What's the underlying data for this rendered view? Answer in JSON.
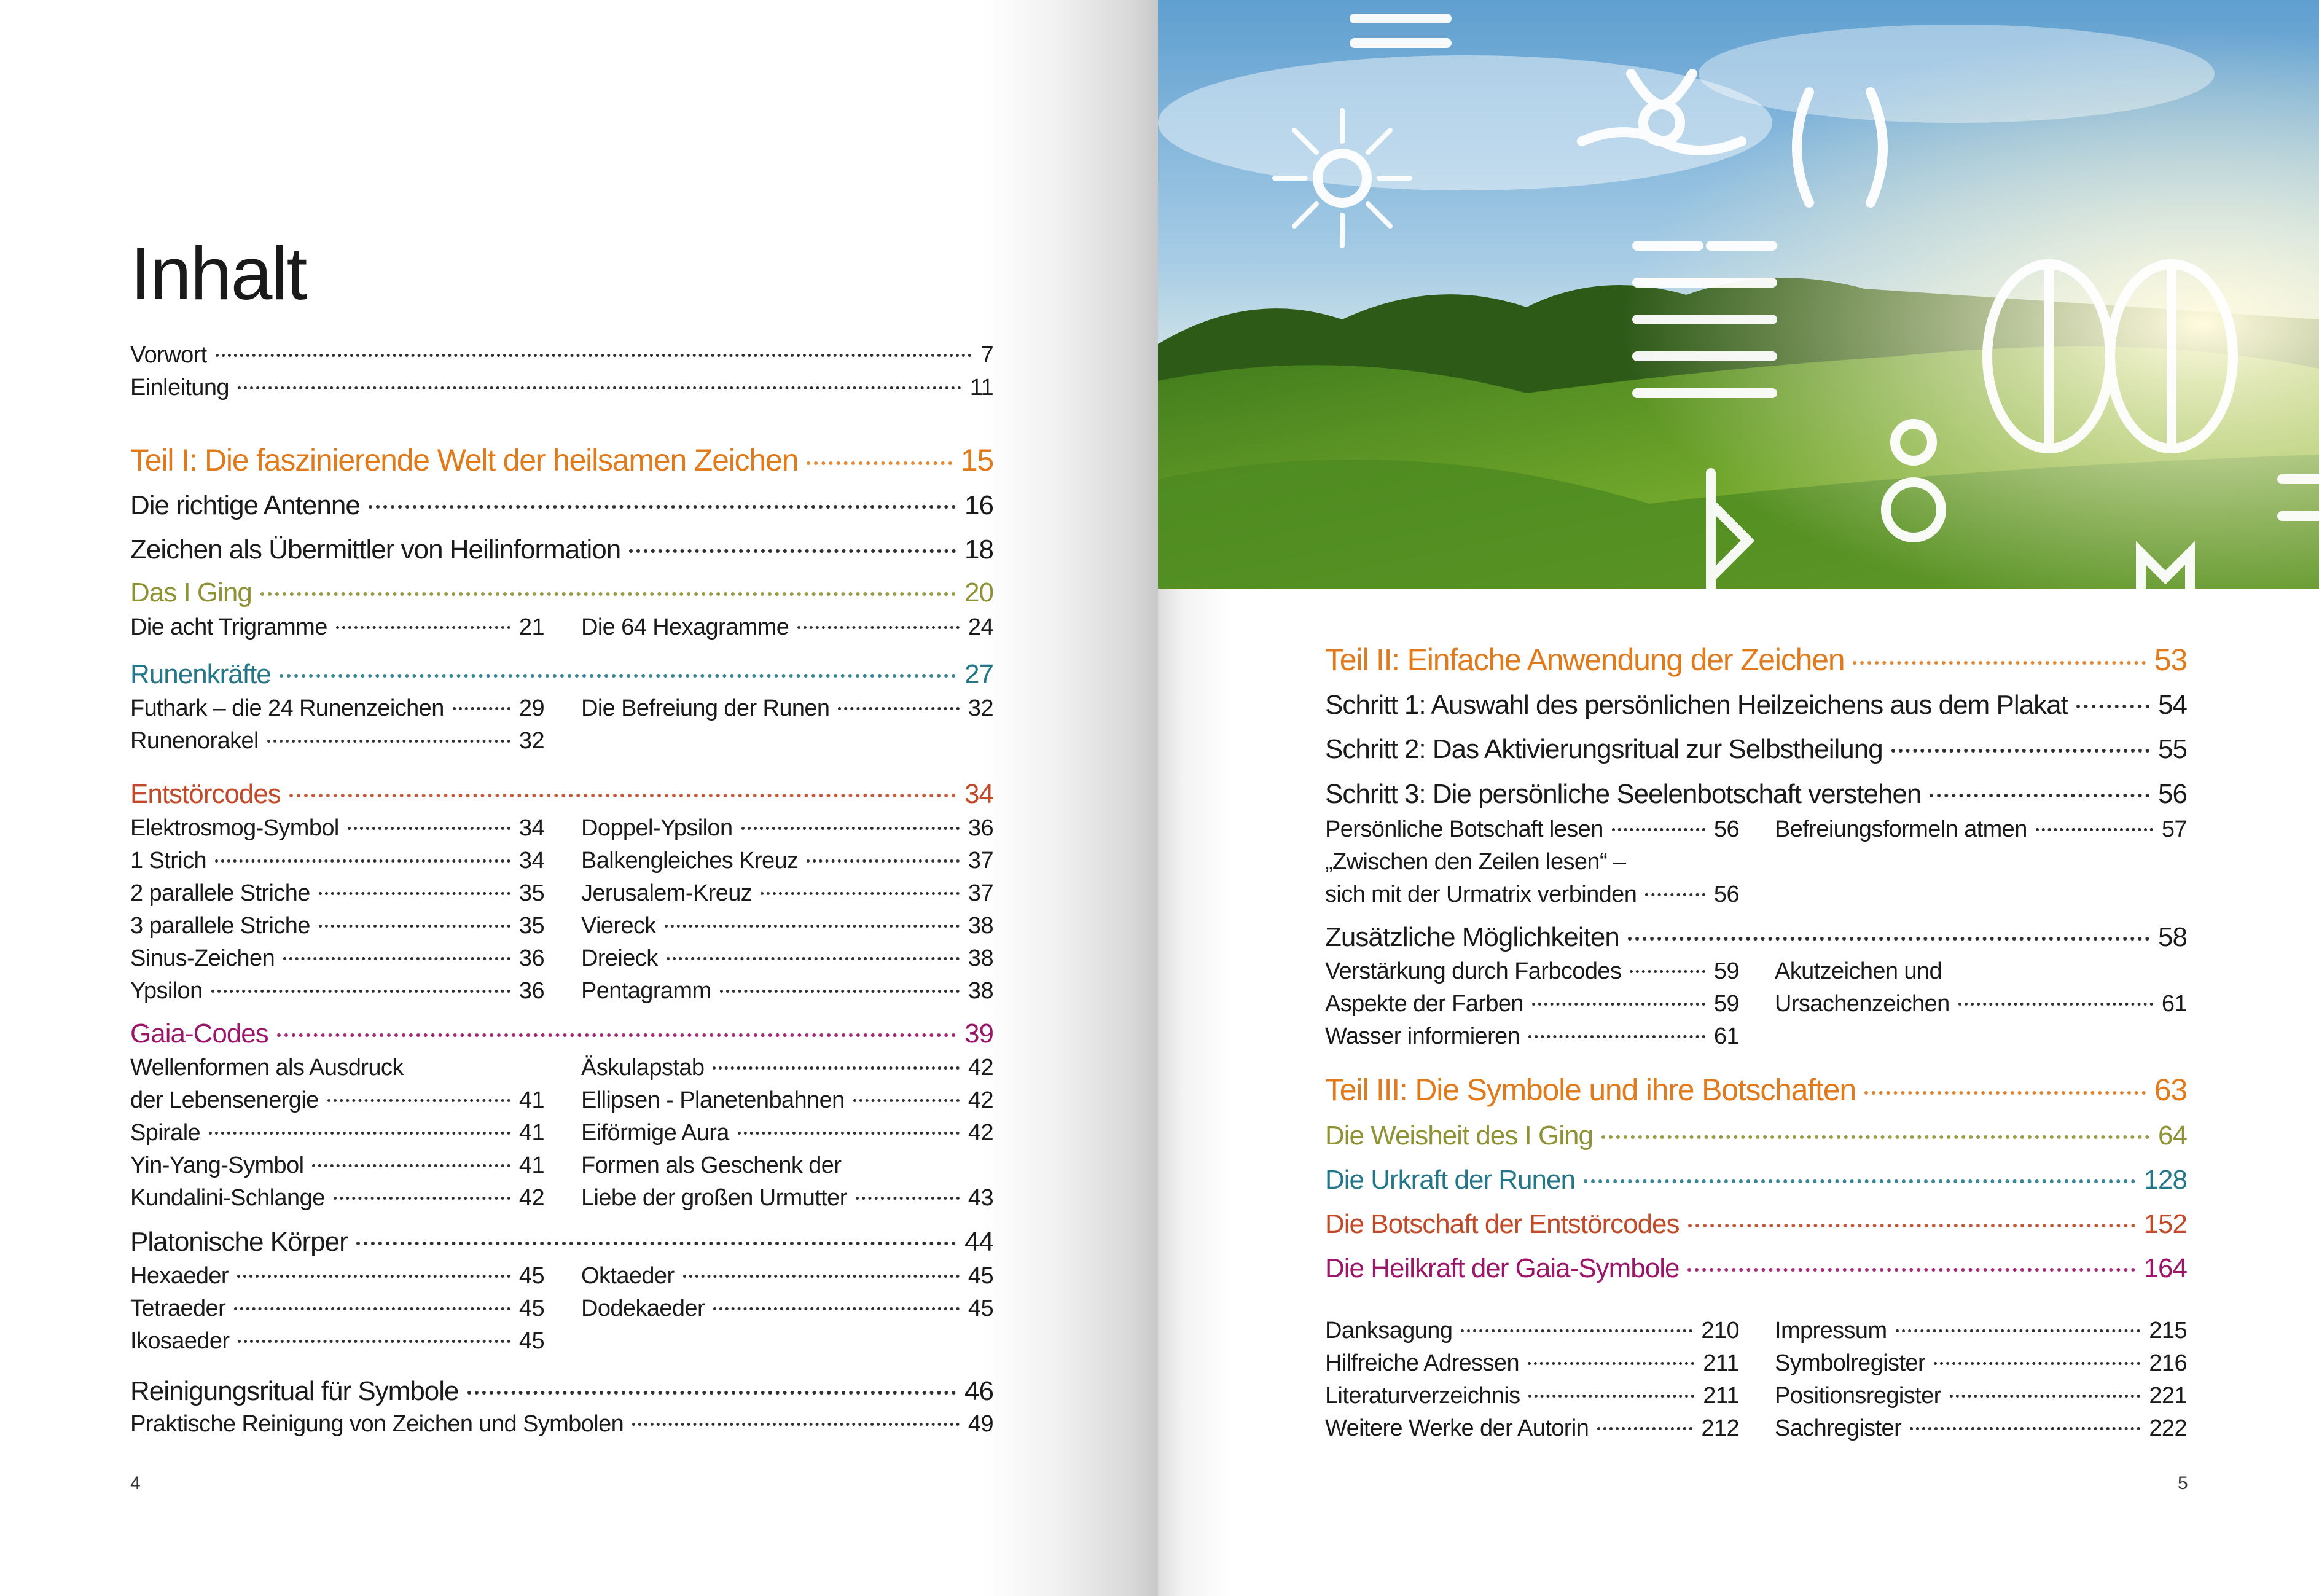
{
  "title": "Inhalt",
  "colors": {
    "part": "#e07a1b",
    "iging": "#8e9234",
    "runen": "#24778a",
    "entstoer": "#c24a28",
    "gaia": "#9b1569"
  },
  "left": {
    "vorwort": {
      "t": "Vorwort",
      "p": "7"
    },
    "einleitung": {
      "t": "Einleitung",
      "p": "11"
    },
    "teil1": {
      "t": "Teil I:  Die faszinierende Welt der heilsamen Zeichen",
      "p": "15"
    },
    "antenne": {
      "t": "Die richtige Antenne",
      "p": "16"
    },
    "zeichen": {
      "t": "Zeichen als Übermittler von Heilinformation",
      "p": "18"
    },
    "iging": {
      "t": "Das I Ging",
      "p": "20"
    },
    "trigramme": {
      "t": "Die acht Trigramme",
      "p": "21"
    },
    "hexagramme": {
      "t": "Die 64 Hexagramme",
      "p": "24"
    },
    "runen": {
      "t": "Runenkräfte",
      "p": "27"
    },
    "futhark": {
      "t": "Futhark – die 24 Runenzeichen",
      "p": "29"
    },
    "befreiung": {
      "t": "Die Befreiung der Runen",
      "p": "32"
    },
    "orakel": {
      "t": "Runenorakel",
      "p": "32"
    },
    "entstoer": {
      "t": "Entstörcodes",
      "p": "34"
    },
    "entstoer_left": [
      {
        "t": "Elektrosmog-Symbol",
        "p": "34"
      },
      {
        "t": "1 Strich",
        "p": "34"
      },
      {
        "t": "2 parallele Striche",
        "p": "35"
      },
      {
        "t": "3 parallele Striche",
        "p": "35"
      },
      {
        "t": "Sinus-Zeichen",
        "p": "36"
      },
      {
        "t": "Ypsilon",
        "p": "36"
      }
    ],
    "entstoer_right": [
      {
        "t": "Doppel-Ypsilon",
        "p": "36"
      },
      {
        "t": "Balkengleiches Kreuz",
        "p": "37"
      },
      {
        "t": "Jerusalem-Kreuz",
        "p": "37"
      },
      {
        "t": "Viereck",
        "p": "38"
      },
      {
        "t": "Dreieck",
        "p": "38"
      },
      {
        "t": "Pentagramm",
        "p": "38"
      }
    ],
    "gaia": {
      "t": "Gaia-Codes",
      "p": "39"
    },
    "gaia_left": [
      {
        "t": "Wellenformen als Ausdruck"
      },
      {
        "t": "der Lebensenergie",
        "p": "41"
      },
      {
        "t": "Spirale",
        "p": "41"
      },
      {
        "t": "Yin-Yang-Symbol",
        "p": "41"
      },
      {
        "t": "Kundalini-Schlange",
        "p": "42"
      }
    ],
    "gaia_right": [
      {
        "t": "Äskulapstab",
        "p": "42"
      },
      {
        "t": "Ellipsen - Planetenbahnen",
        "p": "42"
      },
      {
        "t": "Eiförmige Aura",
        "p": "42"
      },
      {
        "t": "Formen als Geschenk der"
      },
      {
        "t": "Liebe der großen Urmutter",
        "p": "43"
      }
    ],
    "platon": {
      "t": "Platonische Körper",
      "p": "44"
    },
    "platon_left": [
      {
        "t": "Hexaeder",
        "p": "45"
      },
      {
        "t": "Tetraeder",
        "p": "45"
      },
      {
        "t": "Ikosaeder",
        "p": "45"
      }
    ],
    "platon_right": [
      {
        "t": "Oktaeder",
        "p": "45"
      },
      {
        "t": "Dodekaeder",
        "p": "45"
      }
    ],
    "reinigung": {
      "t": "Reinigungsritual für Symbole",
      "p": "46"
    },
    "praktisch": {
      "t": "Praktische Reinigung von Zeichen und Symbolen",
      "p": "49"
    },
    "page_number": "4"
  },
  "right": {
    "teil2": {
      "t": "Teil II:  Einfache Anwendung der Zeichen",
      "p": "53"
    },
    "schritt1": {
      "t": "Schritt 1: Auswahl des persönlichen Heilzeichens aus dem Plakat",
      "p": "54"
    },
    "schritt2": {
      "t": "Schritt 2: Das Aktivierungsritual zur Selbstheilung",
      "p": "55"
    },
    "schritt3": {
      "t": "Schritt 3: Die persönliche Seelenbotschaft verstehen",
      "p": "56"
    },
    "botschaft_lesen": {
      "t": "Persönliche Botschaft lesen",
      "p": "56"
    },
    "befreiungsformeln": {
      "t": "Befreiungsformeln atmen",
      "p": "57"
    },
    "zwischen": {
      "t": "„Zwischen den Zeilen lesen“ –"
    },
    "urmatrix": {
      "t": "sich mit der Urmatrix verbinden",
      "p": "56"
    },
    "zusaetzlich": {
      "t": "Zusätzliche Möglichkeiten",
      "p": "58"
    },
    "farbcodes": {
      "t": "Verstärkung durch Farbcodes",
      "p": "59"
    },
    "akut": {
      "t": "Akutzeichen und"
    },
    "aspekte": {
      "t": "Aspekte der Farben",
      "p": "59"
    },
    "ursachen": {
      "t": "Ursachenzeichen",
      "p": "61"
    },
    "wasser": {
      "t": "Wasser informieren",
      "p": "61"
    },
    "teil3": {
      "t": "Teil III:  Die Symbole und ihre Botschaften",
      "p": "63"
    },
    "weisheit": {
      "t": "Die Weisheit des I Ging",
      "p": "64"
    },
    "urkraft": {
      "t": "Die Urkraft der Runen",
      "p": "128"
    },
    "botschaft": {
      "t": "Die Botschaft der Entstörcodes",
      "p": "152"
    },
    "heilkraft": {
      "t": "Die Heilkraft der Gaia-Symbole",
      "p": "164"
    },
    "anhang_left": [
      {
        "t": "Danksagung",
        "p": "210"
      },
      {
        "t": "Hilfreiche Adressen",
        "p": "211"
      },
      {
        "t": "Literaturverzeichnis",
        "p": "211"
      },
      {
        "t": "Weitere Werke der Autorin",
        "p": "212"
      }
    ],
    "anhang_right": [
      {
        "t": "Impressum",
        "p": "215"
      },
      {
        "t": "Symbolregister",
        "p": "216"
      },
      {
        "t": "Positionsregister",
        "p": "221"
      },
      {
        "t": "Sachregister",
        "p": "222"
      }
    ],
    "page_number": "5"
  }
}
